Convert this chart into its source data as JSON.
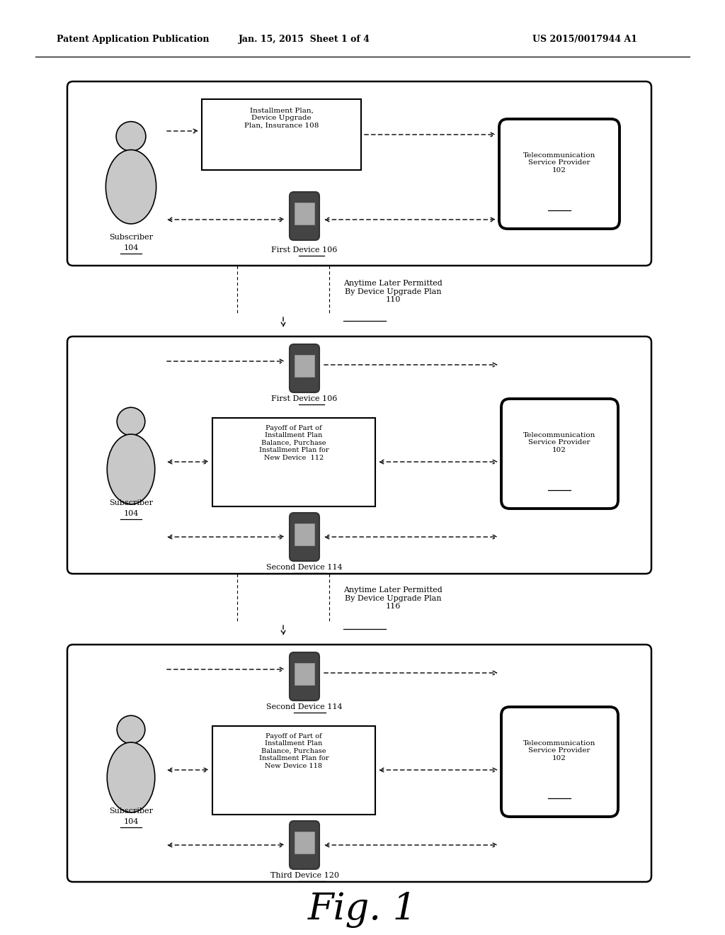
{
  "bg_color": "#ffffff",
  "header_left": "Patent Application Publication",
  "header_mid": "Jan. 15, 2015  Sheet 1 of 4",
  "header_right": "US 2015/0017944 A1",
  "fig_label": "Fig. 1"
}
